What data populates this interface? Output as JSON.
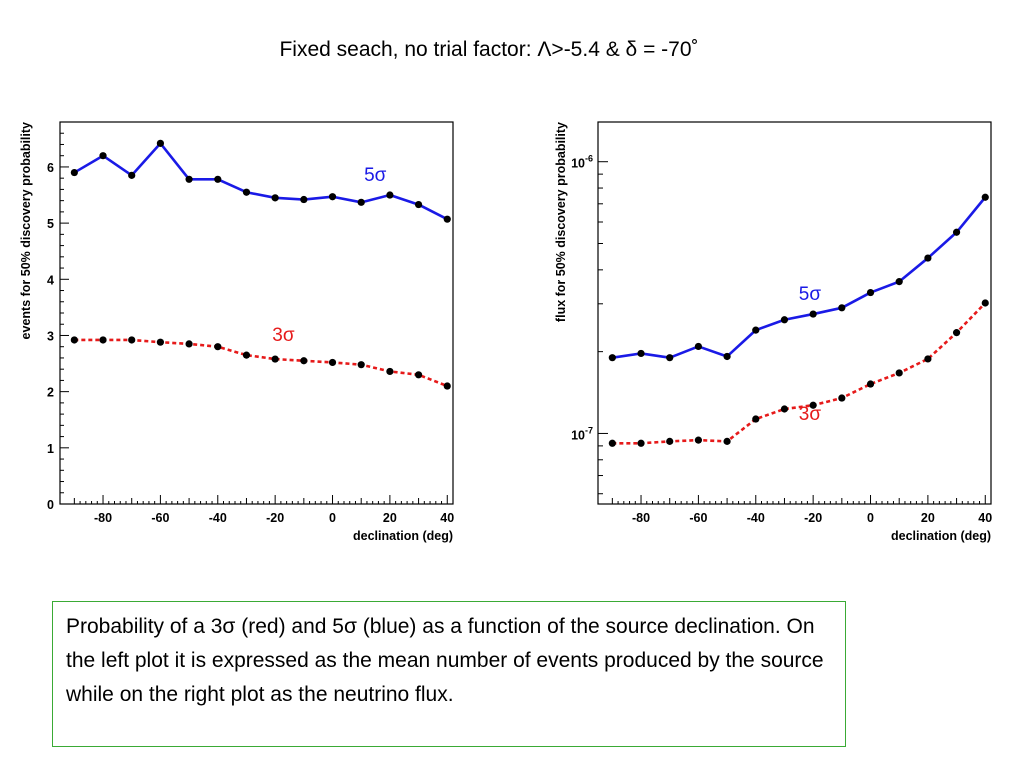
{
  "slide": {
    "title": "Fixed seach, no trial factor: Λ>-5.4 & δ = -70˚",
    "caption": "Probability of a 3σ (red) and 5σ (blue) as a function of the source declination. On the left plot it is expressed as the mean number of events produced by the source while on the right plot as the neutrino flux."
  },
  "colors": {
    "five_sigma": "#1a1ae6",
    "three_sigma": "#e61a1a",
    "marker": "#000000",
    "caption_border": "#3aaa35"
  },
  "chart_data": [
    {
      "type": "line",
      "xlabel": "declination (deg)",
      "ylabel": "events for 50% discovery probability",
      "xlim": [
        -95,
        42
      ],
      "ylim": [
        0,
        6.8
      ],
      "xticks": [
        -80,
        -60,
        -40,
        -20,
        0,
        20,
        40
      ],
      "xtick_labels": [
        "-80",
        "-60",
        "-40",
        "-20",
        "0",
        "20",
        "40"
      ],
      "yticks": [
        0,
        1,
        2,
        3,
        4,
        5,
        6
      ],
      "ytick_labels": [
        "0",
        "1",
        "2",
        "3",
        "4",
        "5",
        "6"
      ],
      "yscale": "linear",
      "x": [
        -90,
        -80,
        -70,
        -60,
        -50,
        -40,
        -30,
        -20,
        -10,
        0,
        10,
        20,
        30,
        40
      ],
      "series": [
        {
          "name": "5σ",
          "style": "solid",
          "color": "#1a1ae6",
          "values": [
            5.9,
            6.2,
            5.85,
            6.42,
            5.78,
            5.78,
            5.55,
            5.45,
            5.42,
            5.47,
            5.37,
            5.5,
            5.33,
            5.07
          ]
        },
        {
          "name": "3σ",
          "style": "dashed",
          "color": "#e61a1a",
          "values": [
            2.92,
            2.92,
            2.92,
            2.88,
            2.85,
            2.8,
            2.65,
            2.58,
            2.55,
            2.52,
            2.48,
            2.36,
            2.3,
            2.1
          ]
        }
      ],
      "annotations": [
        {
          "text": "5σ",
          "x": 11,
          "y": 5.75,
          "color": "#1a1ae6"
        },
        {
          "text": "3σ",
          "x": -21,
          "y": 2.9,
          "color": "#e61a1a"
        }
      ]
    },
    {
      "type": "line",
      "xlabel": "declination (deg)",
      "ylabel": "flux for 50% discovery probability",
      "xlim": [
        -95,
        42
      ],
      "ylim": [
        5.5e-08,
        1.4e-06
      ],
      "yscale": "log",
      "xticks": [
        -80,
        -60,
        -40,
        -20,
        0,
        20,
        40
      ],
      "xtick_labels": [
        "-80",
        "-60",
        "-40",
        "-20",
        "0",
        "20",
        "40"
      ],
      "ytick_labels": [
        {
          "value": 1e-07,
          "base": "10",
          "exp": "-7"
        },
        {
          "value": 1e-06,
          "base": "10",
          "exp": "-6"
        }
      ],
      "x": [
        -90,
        -80,
        -70,
        -60,
        -50,
        -40,
        -30,
        -20,
        -10,
        0,
        10,
        20,
        30,
        40
      ],
      "series": [
        {
          "name": "5σ",
          "style": "solid",
          "color": "#1a1ae6",
          "values": [
            1.9e-07,
            1.97e-07,
            1.9e-07,
            2.09e-07,
            1.92e-07,
            2.4e-07,
            2.62e-07,
            2.75e-07,
            2.9e-07,
            3.3e-07,
            3.62e-07,
            4.42e-07,
            5.5e-07,
            7.4e-07
          ]
        },
        {
          "name": "3σ",
          "style": "dashed",
          "color": "#e61a1a",
          "values": [
            9.2e-08,
            9.2e-08,
            9.35e-08,
            9.45e-08,
            9.35e-08,
            1.13e-07,
            1.23e-07,
            1.27e-07,
            1.35e-07,
            1.52e-07,
            1.67e-07,
            1.88e-07,
            2.35e-07,
            3.02e-07
          ]
        }
      ],
      "annotations": [
        {
          "text": "5σ",
          "x": -25,
          "y": 3.1e-07,
          "color": "#1a1ae6"
        },
        {
          "text": "3σ",
          "x": -25,
          "y": 1.12e-07,
          "color": "#e61a1a"
        }
      ]
    }
  ]
}
